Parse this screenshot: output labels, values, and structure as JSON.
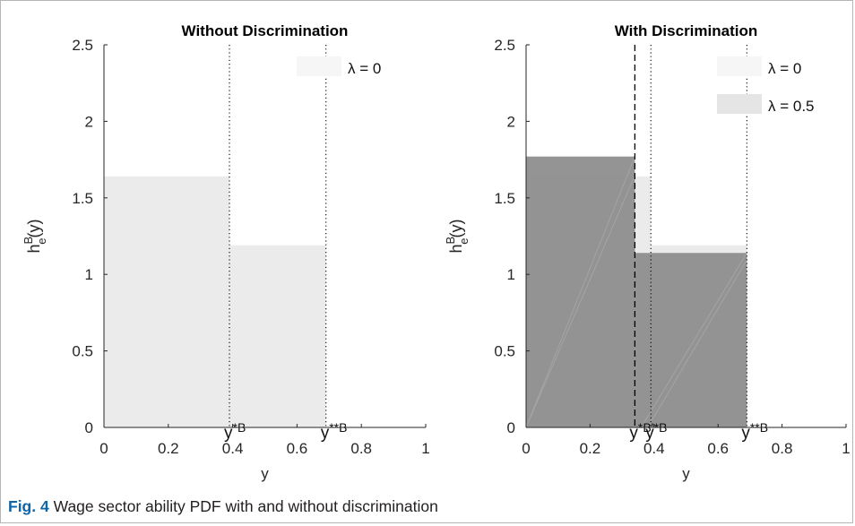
{
  "caption": {
    "label": "Fig. 4",
    "text": "Wage sector ability PDF with and without discrimination"
  },
  "colors": {
    "base_fill": "#ebebeb",
    "disc_fill": "#8c8c8c",
    "legend_base": "#f6f6f6",
    "legend_disc": "#e5e5e5",
    "axis": "#262626"
  },
  "chart_data": [
    {
      "type": "area",
      "title": "Without Discrimination",
      "xlabel": "y",
      "ylabel_main": "h",
      "ylabel_sup": "B",
      "ylabel_sub": "e",
      "ylabel_tail": "(y)",
      "xlim": [
        0,
        1
      ],
      "ylim": [
        0,
        2.5
      ],
      "xticks": [
        0,
        0.2,
        0.4,
        0.6,
        0.8,
        1
      ],
      "xtick_labels": [
        "0",
        "0.2",
        "0.4",
        "0.6",
        "0.8",
        "1"
      ],
      "yticks": [
        0,
        0.5,
        1,
        1.5,
        2,
        2.5
      ],
      "ytick_labels": [
        "0",
        "0.5",
        "1",
        "1.5",
        "2",
        "2.5"
      ],
      "grid": false,
      "legend_position": "top-right",
      "series": [
        {
          "name": "λ = 0",
          "color": "#ebebeb",
          "segments": [
            {
              "x0": 0,
              "x1": 0.39,
              "y": 1.64
            },
            {
              "x0": 0.39,
              "x1": 0.69,
              "y": 1.19
            }
          ]
        }
      ],
      "vlines": [
        {
          "x": 0.39,
          "style": "dotted",
          "label": "y",
          "label_sup": "*B"
        },
        {
          "x": 0.69,
          "style": "dotted",
          "label": "y",
          "label_sup": "**B"
        }
      ]
    },
    {
      "type": "area",
      "title": "With Discrimination",
      "xlabel": "y",
      "ylabel_main": "h",
      "ylabel_sup": "B",
      "ylabel_sub": "e",
      "ylabel_tail": "(y)",
      "xlim": [
        0,
        1
      ],
      "ylim": [
        0,
        2.5
      ],
      "xticks": [
        0,
        0.2,
        0.4,
        0.6,
        0.8,
        1
      ],
      "xtick_labels": [
        "0",
        "0.2",
        "0.4",
        "0.6",
        "0.8",
        "1"
      ],
      "yticks": [
        0,
        0.5,
        1,
        1.5,
        2,
        2.5
      ],
      "ytick_labels": [
        "0",
        "0.5",
        "1",
        "1.5",
        "2",
        "2.5"
      ],
      "grid": false,
      "legend_position": "top-right",
      "series": [
        {
          "name": "λ = 0",
          "color": "#ebebeb",
          "segments": [
            {
              "x0": 0,
              "x1": 0.39,
              "y": 1.64
            },
            {
              "x0": 0.39,
              "x1": 0.69,
              "y": 1.19
            }
          ]
        },
        {
          "name": "λ = 0.5",
          "color": "#8c8c8c",
          "segments": [
            {
              "x0": 0,
              "x1": 0.34,
              "y": 1.77
            },
            {
              "x0": 0.34,
              "x1": 0.69,
              "y": 1.14
            }
          ]
        }
      ],
      "vlines": [
        {
          "x": 0.34,
          "style": "dashed",
          "label": "y",
          "label_sup": "*B'"
        },
        {
          "x": 0.39,
          "style": "dotted",
          "label": "y",
          "label_sup": "*B"
        },
        {
          "x": 0.69,
          "style": "dotted",
          "label": "y",
          "label_sup": "**B"
        }
      ]
    }
  ]
}
